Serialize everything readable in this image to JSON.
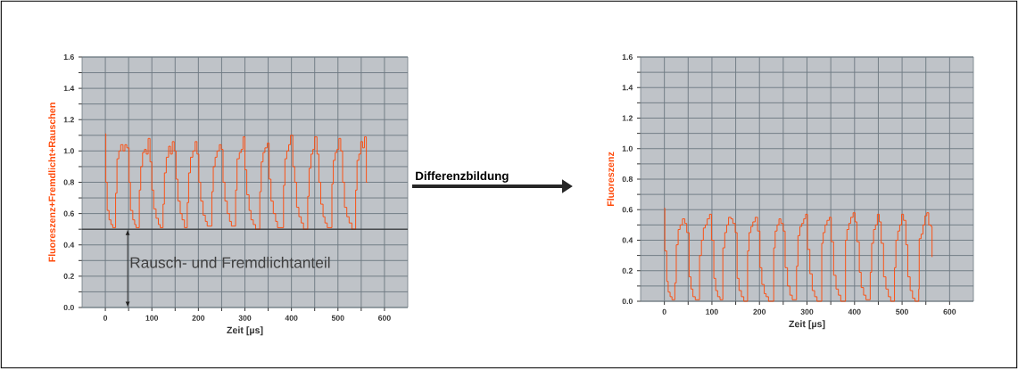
{
  "chart_data": [
    {
      "type": "step",
      "xlabel": "Zeit [µs]",
      "ylabel": "Fluoreszenz+Fremdlicht+Rauschen",
      "x": [
        0,
        1,
        4,
        8,
        12,
        16,
        22,
        25,
        29,
        33,
        38,
        42,
        46,
        51,
        54,
        59,
        63,
        66,
        73,
        76,
        80,
        84,
        88,
        92,
        96,
        100,
        104,
        109,
        114,
        118,
        124,
        127,
        131,
        136,
        140,
        144,
        148,
        152,
        156,
        161,
        165,
        170,
        176,
        179,
        183,
        188,
        193,
        197,
        201,
        205,
        210,
        215,
        219,
        229,
        232,
        236,
        240,
        245,
        249,
        253,
        257,
        262,
        267,
        271,
        280,
        283,
        288,
        292,
        296,
        300,
        304,
        309,
        313,
        318,
        323,
        332,
        335,
        339,
        343,
        348,
        352,
        356,
        361,
        366,
        370,
        383,
        386,
        390,
        394,
        398,
        403,
        407,
        411,
        416,
        421,
        426,
        435,
        438,
        442,
        446,
        450,
        455,
        459,
        463,
        468,
        472,
        477,
        487,
        490,
        494,
        498,
        502,
        506,
        510,
        514,
        519,
        524,
        530,
        538,
        541,
        545,
        549,
        553,
        557,
        561,
        563
      ],
      "series": [
        {
          "color": "#ff4a0a",
          "values": [
            1.11,
            0.8,
            0.62,
            0.56,
            0.53,
            0.51,
            0.73,
            0.95,
            1.0,
            1.04,
            1.0,
            1.04,
            1.02,
            0.8,
            0.62,
            0.56,
            0.53,
            0.51,
            0.75,
            0.9,
            0.99,
            1.01,
            0.98,
            1.08,
            0.93,
            0.75,
            0.63,
            0.57,
            0.53,
            0.51,
            0.66,
            0.86,
            0.96,
            1.03,
            0.98,
            1.06,
            1.0,
            0.82,
            0.68,
            0.6,
            0.56,
            0.51,
            0.67,
            0.86,
            0.96,
            1.0,
            1.06,
            0.98,
            0.8,
            0.68,
            0.59,
            0.55,
            0.52,
            0.74,
            0.9,
            0.96,
            1.0,
            1.04,
            1.01,
            0.8,
            0.68,
            0.6,
            0.55,
            0.52,
            0.75,
            0.95,
            0.99,
            1.01,
            1.09,
            0.88,
            0.72,
            0.62,
            0.56,
            0.53,
            0.5,
            0.74,
            0.93,
            0.99,
            1.02,
            1.05,
            0.82,
            0.68,
            0.6,
            0.55,
            0.51,
            0.78,
            0.95,
            1.0,
            1.04,
            1.1,
            0.9,
            0.8,
            0.64,
            0.58,
            0.54,
            0.5,
            0.71,
            0.89,
            0.98,
            1.01,
            1.09,
            0.98,
            0.8,
            0.66,
            0.58,
            0.54,
            0.51,
            0.79,
            0.94,
            0.99,
            1.01,
            1.08,
            1.0,
            0.8,
            0.64,
            0.58,
            0.54,
            0.5,
            0.75,
            0.94,
            0.98,
            1.06,
            1.02,
            1.09,
            0.8,
            0.8
          ]
        }
      ],
      "xlim": [
        -50,
        650
      ],
      "ylim": [
        0,
        1.6
      ],
      "xticks": [
        0,
        {
          "value": 50,
          "label": null
        },
        100,
        {
          "value": 150,
          "label": null
        },
        200,
        {
          "value": 250,
          "label": null
        },
        300,
        {
          "value": 350,
          "label": null
        },
        400,
        {
          "value": 450,
          "label": null
        },
        500,
        {
          "value": 550,
          "label": null
        },
        600
      ],
      "yticks": [
        {
          "value": 0,
          "label": "0.0"
        },
        {
          "value": 0.1,
          "label": null
        },
        {
          "value": 0.2,
          "label": "0.2"
        },
        {
          "value": 0.3,
          "label": null
        },
        {
          "value": 0.4,
          "label": "0.4"
        },
        {
          "value": 0.5,
          "label": null
        },
        {
          "value": 0.6,
          "label": "0.6"
        },
        {
          "value": 0.7,
          "label": null
        },
        {
          "value": 0.8,
          "label": "0.8"
        },
        {
          "value": 0.9,
          "label": null
        },
        {
          "value": 1.0,
          "label": "1.0"
        },
        {
          "value": 1.1,
          "label": null
        },
        {
          "value": 1.2,
          "label": "1.2"
        },
        {
          "value": 1.3,
          "label": null
        },
        {
          "value": 1.4,
          "label": "1.4"
        },
        {
          "value": 1.5,
          "label": null
        },
        {
          "value": 1.6,
          "label": "1.6"
        }
      ],
      "grid": true,
      "ref_lines": [
        {
          "axis": "y",
          "value": 0.5,
          "color": "#222222"
        }
      ],
      "annotations": [
        "Rausch- und Fremdlichtanteil",
        "Differenzbildung"
      ]
    },
    {
      "type": "step",
      "xlabel": "Zeit [µs]",
      "ylabel": "Fluoreszenz",
      "x": [
        0,
        1,
        5,
        8,
        12,
        16,
        22,
        25,
        29,
        33,
        38,
        43,
        47,
        52,
        56,
        60,
        65,
        70,
        74,
        78,
        82,
        86,
        90,
        95,
        99,
        104,
        108,
        112,
        117,
        123,
        127,
        131,
        135,
        140,
        144,
        149,
        153,
        157,
        162,
        167,
        175,
        178,
        182,
        186,
        191,
        196,
        201,
        205,
        210,
        214,
        219,
        230,
        233,
        237,
        241,
        245,
        250,
        254,
        259,
        264,
        269,
        278,
        281,
        285,
        289,
        293,
        297,
        301,
        306,
        311,
        316,
        321,
        331,
        334,
        338,
        342,
        347,
        351,
        356,
        361,
        366,
        371,
        381,
        384,
        388,
        392,
        397,
        401,
        405,
        410,
        414,
        419,
        424,
        433,
        436,
        440,
        444,
        448,
        452,
        456,
        461,
        466,
        471,
        476,
        484,
        487,
        491,
        495,
        499,
        503,
        508,
        512,
        517,
        522,
        527,
        535,
        536,
        540,
        544,
        548,
        552,
        556,
        561,
        563
      ],
      "series": [
        {
          "color": "#ff4a0a",
          "values": [
            0.61,
            0.33,
            0.13,
            0.06,
            0.03,
            0.01,
            0.12,
            0.37,
            0.47,
            0.5,
            0.54,
            0.51,
            0.45,
            0.16,
            0.08,
            0.03,
            0.01,
            0.01,
            0.3,
            0.4,
            0.48,
            0.5,
            0.54,
            0.57,
            0.4,
            0.15,
            0.07,
            0.03,
            0.01,
            0.35,
            0.45,
            0.5,
            0.55,
            0.54,
            0.51,
            0.45,
            0.15,
            0.07,
            0.03,
            0.0,
            0.33,
            0.45,
            0.49,
            0.52,
            0.55,
            0.46,
            0.22,
            0.11,
            0.05,
            0.03,
            0.0,
            0.35,
            0.46,
            0.5,
            0.54,
            0.51,
            0.46,
            0.22,
            0.1,
            0.04,
            0.01,
            0.23,
            0.43,
            0.49,
            0.51,
            0.54,
            0.57,
            0.34,
            0.18,
            0.07,
            0.03,
            0.0,
            0.38,
            0.45,
            0.5,
            0.53,
            0.55,
            0.39,
            0.17,
            0.08,
            0.04,
            0.0,
            0.4,
            0.47,
            0.51,
            0.55,
            0.58,
            0.52,
            0.39,
            0.19,
            0.09,
            0.04,
            0.01,
            0.19,
            0.38,
            0.47,
            0.5,
            0.57,
            0.52,
            0.38,
            0.16,
            0.08,
            0.03,
            0.0,
            0.22,
            0.4,
            0.46,
            0.5,
            0.57,
            0.53,
            0.37,
            0.16,
            0.07,
            0.02,
            0.0,
            0.08,
            0.41,
            0.44,
            0.5,
            0.56,
            0.58,
            0.5,
            0.49,
            0.29
          ]
        }
      ],
      "xlim": [
        -50,
        650
      ],
      "ylim": [
        0,
        1.6
      ],
      "xticks": [
        0,
        {
          "value": 50,
          "label": null
        },
        100,
        {
          "value": 150,
          "label": null
        },
        200,
        {
          "value": 250,
          "label": null
        },
        300,
        {
          "value": 350,
          "label": null
        },
        400,
        {
          "value": 450,
          "label": null
        },
        500,
        {
          "value": 550,
          "label": null
        },
        600
      ],
      "yticks": [
        {
          "value": 0,
          "label": "0.0"
        },
        {
          "value": 0.1,
          "label": null
        },
        {
          "value": 0.2,
          "label": "0.2"
        },
        {
          "value": 0.3,
          "label": null
        },
        {
          "value": 0.4,
          "label": "0.4"
        },
        {
          "value": 0.5,
          "label": null
        },
        {
          "value": 0.6,
          "label": "0.6"
        },
        {
          "value": 0.7,
          "label": null
        },
        {
          "value": 0.8,
          "label": "0.8"
        },
        {
          "value": 0.9,
          "label": null
        },
        {
          "value": 1.0,
          "label": "1.0"
        },
        {
          "value": 1.1,
          "label": null
        },
        {
          "value": 1.2,
          "label": "1.2"
        },
        {
          "value": 1.3,
          "label": null
        },
        {
          "value": 1.4,
          "label": "1.4"
        },
        {
          "value": 1.5,
          "label": null
        },
        {
          "value": 1.6,
          "label": "1.6"
        }
      ],
      "grid": true
    }
  ]
}
